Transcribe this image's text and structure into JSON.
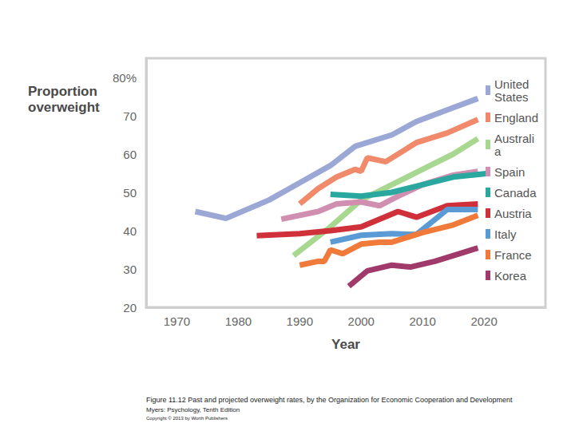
{
  "chart_data": {
    "type": "line",
    "y_label": "Proportion overweight",
    "x_label": "Year",
    "annotations": [
      "Figure 11.12 Past and projected overweight rates, by the Organization for Economic Cooperation and Development",
      "Myers: Psychology, Tenth Edition",
      "Copyright © 2013 by Worth Publishers"
    ],
    "xlim": [
      1965,
      2030
    ],
    "xticks": [
      1970,
      1980,
      1990,
      2000,
      2010,
      2020
    ],
    "ylim": [
      20,
      85
    ],
    "yticks": [
      20,
      30,
      40,
      50,
      60,
      70,
      {
        "value": 80,
        "label": "80%"
      }
    ],
    "grid": false,
    "legend": "right",
    "series": [
      {
        "name": "United States",
        "color": "#9ba8d6",
        "x": [
          1973,
          1978,
          1985,
          1990,
          1995,
          1999,
          2005,
          2009,
          2014,
          2019
        ],
        "values": [
          45,
          43.2,
          48,
          52.5,
          57,
          62,
          65,
          68.5,
          71.5,
          74.5
        ]
      },
      {
        "name": "England",
        "color": "#f08a6a",
        "x": [
          1990,
          1993,
          1996,
          1999,
          2000,
          2001,
          2004,
          2009,
          2014,
          2019
        ],
        "values": [
          47,
          51,
          54,
          56,
          55.5,
          59,
          58,
          63,
          65.5,
          69
        ]
      },
      {
        "name": "Australia",
        "color": "#a8d890",
        "x": [
          1989,
          1995,
          2000,
          2005,
          2010,
          2015,
          2019
        ],
        "values": [
          33.5,
          41,
          48,
          52,
          56,
          60,
          64
        ]
      },
      {
        "name": "Spain",
        "color": "#d08fb0",
        "x": [
          1987,
          1993,
          1996,
          2000,
          2003,
          2006,
          2010,
          2015,
          2019
        ],
        "values": [
          43,
          45,
          47,
          47.5,
          46.5,
          49,
          52,
          54.5,
          55.5
        ]
      },
      {
        "name": "Canada",
        "color": "#2aa8a0",
        "x": [
          1995,
          2000,
          2005,
          2010,
          2015,
          2021
        ],
        "values": [
          49.5,
          49,
          50,
          52,
          54,
          55
        ]
      },
      {
        "name": "Austria",
        "color": "#d0303a",
        "x": [
          1983,
          1990,
          1995,
          2000,
          2006,
          2009,
          2014,
          2019
        ],
        "values": [
          38.7,
          39.2,
          40,
          41,
          45,
          43.5,
          46.5,
          47
        ]
      },
      {
        "name": "Italy",
        "color": "#5b9bd5",
        "x": [
          1995,
          2000,
          2005,
          2009,
          2014,
          2019
        ],
        "values": [
          37,
          38.8,
          39.2,
          39,
          45.5,
          45.5
        ]
      },
      {
        "name": "France",
        "color": "#f07a3a",
        "x": [
          1990,
          1993,
          1994,
          1995,
          1997,
          2000,
          2003,
          2005,
          2010,
          2015,
          2019
        ],
        "values": [
          31,
          32,
          32,
          35,
          34,
          36.5,
          37,
          37,
          39.5,
          41.5,
          44
        ]
      },
      {
        "name": "Korea",
        "color": "#a03a6a",
        "x": [
          1998,
          2001,
          2005,
          2008,
          2012,
          2016,
          2019
        ],
        "values": [
          25.5,
          29.5,
          31,
          30.5,
          32,
          34,
          35.5
        ]
      }
    ]
  }
}
